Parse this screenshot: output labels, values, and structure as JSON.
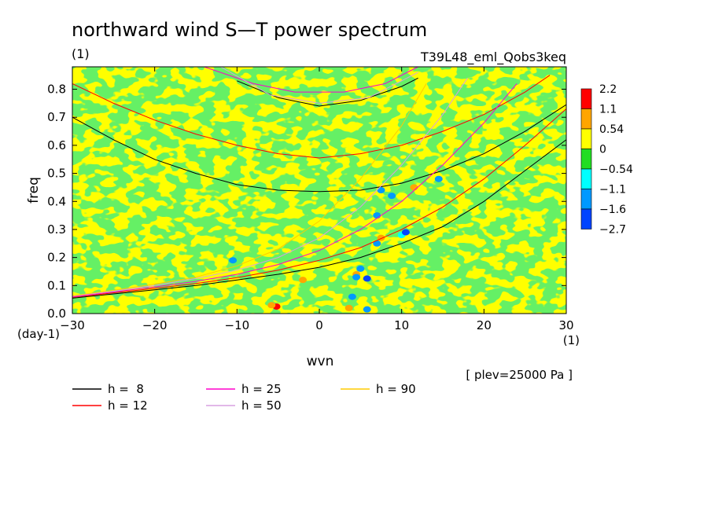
{
  "chart_data": {
    "type": "heatmap",
    "title": "northward wind S—T power spectrum",
    "subtitle_left": "(1)",
    "subtitle_right": "T39L48_eml_Qobs3keq",
    "xlabel": "wvn",
    "xunit": "(1)",
    "ylabel": "freq",
    "yunit": "(day-1)",
    "xlim": [
      -30,
      30
    ],
    "ylim": [
      0,
      0.88
    ],
    "xticks": [
      "−30",
      "−20",
      "−10",
      "0",
      "10",
      "20",
      "30"
    ],
    "xtick_values": [
      -30,
      -20,
      -10,
      0,
      10,
      20,
      30
    ],
    "yticks": [
      "0.0",
      "0.1",
      "0.2",
      "0.3",
      "0.4",
      "0.5",
      "0.6",
      "0.7",
      "0.8"
    ],
    "ytick_values": [
      0,
      0.1,
      0.2,
      0.3,
      0.4,
      0.5,
      0.6,
      0.7,
      0.8
    ],
    "annotation": "[ plev=25000 Pa ]",
    "colorbar": {
      "levels": [
        "2.2",
        "1.1",
        "0.54",
        "0",
        "−0.54",
        "−1.1",
        "−1.6",
        "−2.7"
      ],
      "colors": [
        "#ff0000",
        "#ffa500",
        "#ffff00",
        "#22dd22",
        "#00ffff",
        "#0099ff",
        "#0044ff"
      ]
    },
    "background_color": "#ffff00",
    "legend_placement": "bottom",
    "legend": [
      {
        "label": "h =  8",
        "color": "#000000"
      },
      {
        "label": "h = 12",
        "color": "#ff0000"
      },
      {
        "label": "h = 25",
        "color": "#ff00cc"
      },
      {
        "label": "h = 50",
        "color": "#d9a0e0"
      },
      {
        "label": "h = 90",
        "color": "#ffcc00"
      }
    ],
    "dispersion_curves": [
      {
        "h": 8,
        "color": "#000000",
        "points": [
          [
            -30,
            0.7
          ],
          [
            -25,
            0.62
          ],
          [
            -20,
            0.55
          ],
          [
            -15,
            0.5
          ],
          [
            -10,
            0.46
          ],
          [
            -5,
            0.44
          ],
          [
            0,
            0.435
          ],
          [
            5,
            0.44
          ],
          [
            10,
            0.465
          ],
          [
            15,
            0.51
          ],
          [
            20,
            0.57
          ],
          [
            25,
            0.65
          ],
          [
            30,
            0.745
          ]
        ]
      },
      {
        "h": 12,
        "color": "#ff0000",
        "points": [
          [
            -30,
            0.82
          ],
          [
            -25,
            0.75
          ],
          [
            -20,
            0.69
          ],
          [
            -15,
            0.64
          ],
          [
            -10,
            0.6
          ],
          [
            -5,
            0.57
          ],
          [
            0,
            0.555
          ],
          [
            5,
            0.57
          ],
          [
            10,
            0.6
          ],
          [
            15,
            0.65
          ],
          [
            20,
            0.71
          ],
          [
            25,
            0.79
          ],
          [
            28,
            0.85
          ]
        ]
      },
      {
        "h": 8,
        "color": "#000000",
        "points": [
          [
            -10,
            0.83
          ],
          [
            -5,
            0.77
          ],
          [
            0,
            0.74
          ],
          [
            5,
            0.76
          ],
          [
            10,
            0.81
          ],
          [
            12,
            0.84
          ]
        ]
      },
      {
        "h": 25,
        "color": "#ff00cc",
        "points": [
          [
            -14,
            0.88
          ],
          [
            -8,
            0.82
          ],
          [
            -3,
            0.79
          ],
          [
            3,
            0.79
          ],
          [
            8,
            0.82
          ],
          [
            12,
            0.88
          ]
        ]
      },
      {
        "h": 8,
        "color": "#000000",
        "points": [
          [
            -30,
            0.055
          ],
          [
            -25,
            0.07
          ],
          [
            -20,
            0.085
          ],
          [
            -15,
            0.1
          ],
          [
            -10,
            0.12
          ],
          [
            -5,
            0.14
          ],
          [
            0,
            0.165
          ],
          [
            5,
            0.2
          ],
          [
            10,
            0.25
          ],
          [
            15,
            0.31
          ],
          [
            20,
            0.4
          ],
          [
            25,
            0.51
          ],
          [
            30,
            0.62
          ]
        ]
      },
      {
        "h": 12,
        "color": "#ff0000",
        "points": [
          [
            -30,
            0.058
          ],
          [
            -25,
            0.074
          ],
          [
            -20,
            0.09
          ],
          [
            -15,
            0.107
          ],
          [
            -10,
            0.128
          ],
          [
            -5,
            0.155
          ],
          [
            0,
            0.19
          ],
          [
            5,
            0.235
          ],
          [
            10,
            0.3
          ],
          [
            15,
            0.38
          ],
          [
            20,
            0.48
          ],
          [
            25,
            0.6
          ],
          [
            30,
            0.73
          ]
        ]
      },
      {
        "h": 25,
        "color": "#ff00cc",
        "points": [
          [
            -30,
            0.06
          ],
          [
            -25,
            0.077
          ],
          [
            -20,
            0.095
          ],
          [
            -15,
            0.115
          ],
          [
            -10,
            0.14
          ],
          [
            -5,
            0.175
          ],
          [
            0,
            0.225
          ],
          [
            5,
            0.3
          ],
          [
            10,
            0.4
          ],
          [
            15,
            0.53
          ],
          [
            20,
            0.68
          ],
          [
            24,
            0.82
          ]
        ]
      },
      {
        "h": 50,
        "color": "#d9a0e0",
        "points": [
          [
            -30,
            0.062
          ],
          [
            -25,
            0.08
          ],
          [
            -20,
            0.1
          ],
          [
            -15,
            0.125
          ],
          [
            -10,
            0.155
          ],
          [
            -5,
            0.2
          ],
          [
            0,
            0.27
          ],
          [
            5,
            0.38
          ],
          [
            10,
            0.53
          ],
          [
            15,
            0.71
          ],
          [
            18,
            0.84
          ]
        ]
      },
      {
        "h": 90,
        "color": "#ffcc00",
        "points": [
          [
            -30,
            0.064
          ],
          [
            -25,
            0.083
          ],
          [
            -20,
            0.105
          ],
          [
            -15,
            0.13
          ],
          [
            -10,
            0.17
          ],
          [
            -5,
            0.23
          ],
          [
            0,
            0.33
          ],
          [
            5,
            0.48
          ],
          [
            10,
            0.67
          ],
          [
            13,
            0.82
          ]
        ]
      },
      {
        "h": 50,
        "color": "#d9a0e0",
        "points": [
          [
            -12,
            0.88
          ],
          [
            -6,
            0.78
          ],
          [
            0,
            0.75
          ],
          [
            6,
            0.77
          ],
          [
            12,
            0.86
          ]
        ]
      }
    ],
    "spots": [
      {
        "x": -5.2,
        "y": 0.025,
        "level": "2.2"
      },
      {
        "x": -5.8,
        "y": 0.03,
        "level": "1.1"
      },
      {
        "x": 3.6,
        "y": 0.02,
        "level": "1.1"
      },
      {
        "x": 4.5,
        "y": 0.14,
        "level": "1.1"
      },
      {
        "x": 7.5,
        "y": 0.27,
        "level": "1.1"
      },
      {
        "x": 11.5,
        "y": 0.45,
        "level": "1.1"
      },
      {
        "x": -2.0,
        "y": 0.12,
        "level": "1.1"
      },
      {
        "x": 4.5,
        "y": 0.13,
        "level": "-1.1"
      },
      {
        "x": 5.8,
        "y": 0.125,
        "level": "-1.6"
      },
      {
        "x": 5.8,
        "y": 0.015,
        "level": "-1.1"
      },
      {
        "x": 7.0,
        "y": 0.25,
        "level": "-1.1"
      },
      {
        "x": 7.0,
        "y": 0.35,
        "level": "-1.1"
      },
      {
        "x": 7.5,
        "y": 0.44,
        "level": "-1.1"
      },
      {
        "x": 10.0,
        "y": 0.28,
        "level": "-0.54"
      },
      {
        "x": 10.5,
        "y": 0.29,
        "level": "-1.6"
      },
      {
        "x": 14.5,
        "y": 0.48,
        "level": "-1.1"
      },
      {
        "x": -10.5,
        "y": 0.19,
        "level": "-1.1"
      },
      {
        "x": 4.0,
        "y": 0.06,
        "level": "-1.1"
      },
      {
        "x": 5.0,
        "y": 0.16,
        "level": "-1.1"
      },
      {
        "x": 8.8,
        "y": 0.42,
        "level": "-1.1"
      }
    ]
  }
}
